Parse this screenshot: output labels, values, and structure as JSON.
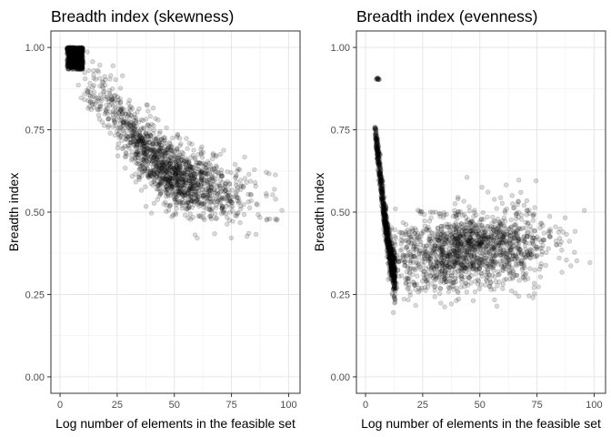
{
  "chart_data": [
    {
      "type": "scatter",
      "title": "Breadth index (skewness)",
      "xlabel": "Log number of elements in the feasible set",
      "ylabel": "Breadth index",
      "xlim": [
        -4,
        105
      ],
      "ylim": [
        -0.05,
        1.05
      ],
      "xticks": [
        "0",
        "25",
        "50",
        "75",
        "100"
      ],
      "yticks": [
        "0.00",
        "0.25",
        "0.50",
        "0.75",
        "1.00"
      ],
      "grid": true,
      "legend": "none",
      "point_color": "#000000",
      "point_alpha": 0.15,
      "series": [
        {
          "clusters": [
            {
              "x_range": [
                3,
                10
              ],
              "y_center": 0.96,
              "y_spread": 0.035,
              "n": 700,
              "shape": "dense-head"
            },
            {
              "x_range": [
                8,
                100
              ],
              "trend": [
                [
                  8,
                  0.93
                ],
                [
                  20,
                  0.84
                ],
                [
                  30,
                  0.74
                ],
                [
                  40,
                  0.66
                ],
                [
                  50,
                  0.61
                ],
                [
                  60,
                  0.58
                ],
                [
                  75,
                  0.55
                ],
                [
                  90,
                  0.53
                ],
                [
                  100,
                  0.52
                ]
              ],
              "y_spread": 0.05,
              "n": 1500
            }
          ]
        }
      ]
    },
    {
      "type": "scatter",
      "title": "Breadth index (evenness)",
      "xlabel": "Log number of elements in the feasible set",
      "ylabel": "Breadth index",
      "xlim": [
        -4,
        105
      ],
      "ylim": [
        -0.05,
        1.05
      ],
      "xticks": [
        "0",
        "25",
        "50",
        "75",
        "100"
      ],
      "yticks": [
        "0.00",
        "0.25",
        "0.50",
        "0.75",
        "1.00"
      ],
      "grid": true,
      "legend": "none",
      "point_color": "#000000",
      "point_alpha": 0.15,
      "series": [
        {
          "clusters": [
            {
              "x_range": [
                4,
                6
              ],
              "y_center": 0.905,
              "y_spread": 0.002,
              "n": 12,
              "shape": "small-blob"
            },
            {
              "x_range": [
                4,
                13
              ],
              "trend": [
                [
                  4,
                  0.76
                ],
                [
                  6,
                  0.64
                ],
                [
                  8,
                  0.5
                ],
                [
                  10,
                  0.4
                ],
                [
                  12,
                  0.33
                ],
                [
                  13,
                  0.3
                ]
              ],
              "y_spread": 0.03,
              "n": 900,
              "shape": "dense-band"
            },
            {
              "x_range": [
                12,
                100
              ],
              "trend": [
                [
                  12,
                  0.36
                ],
                [
                  30,
                  0.37
                ],
                [
                  50,
                  0.39
                ],
                [
                  75,
                  0.4
                ],
                [
                  100,
                  0.42
                ]
              ],
              "y_spread": 0.06,
              "n": 1500
            }
          ]
        }
      ]
    }
  ]
}
